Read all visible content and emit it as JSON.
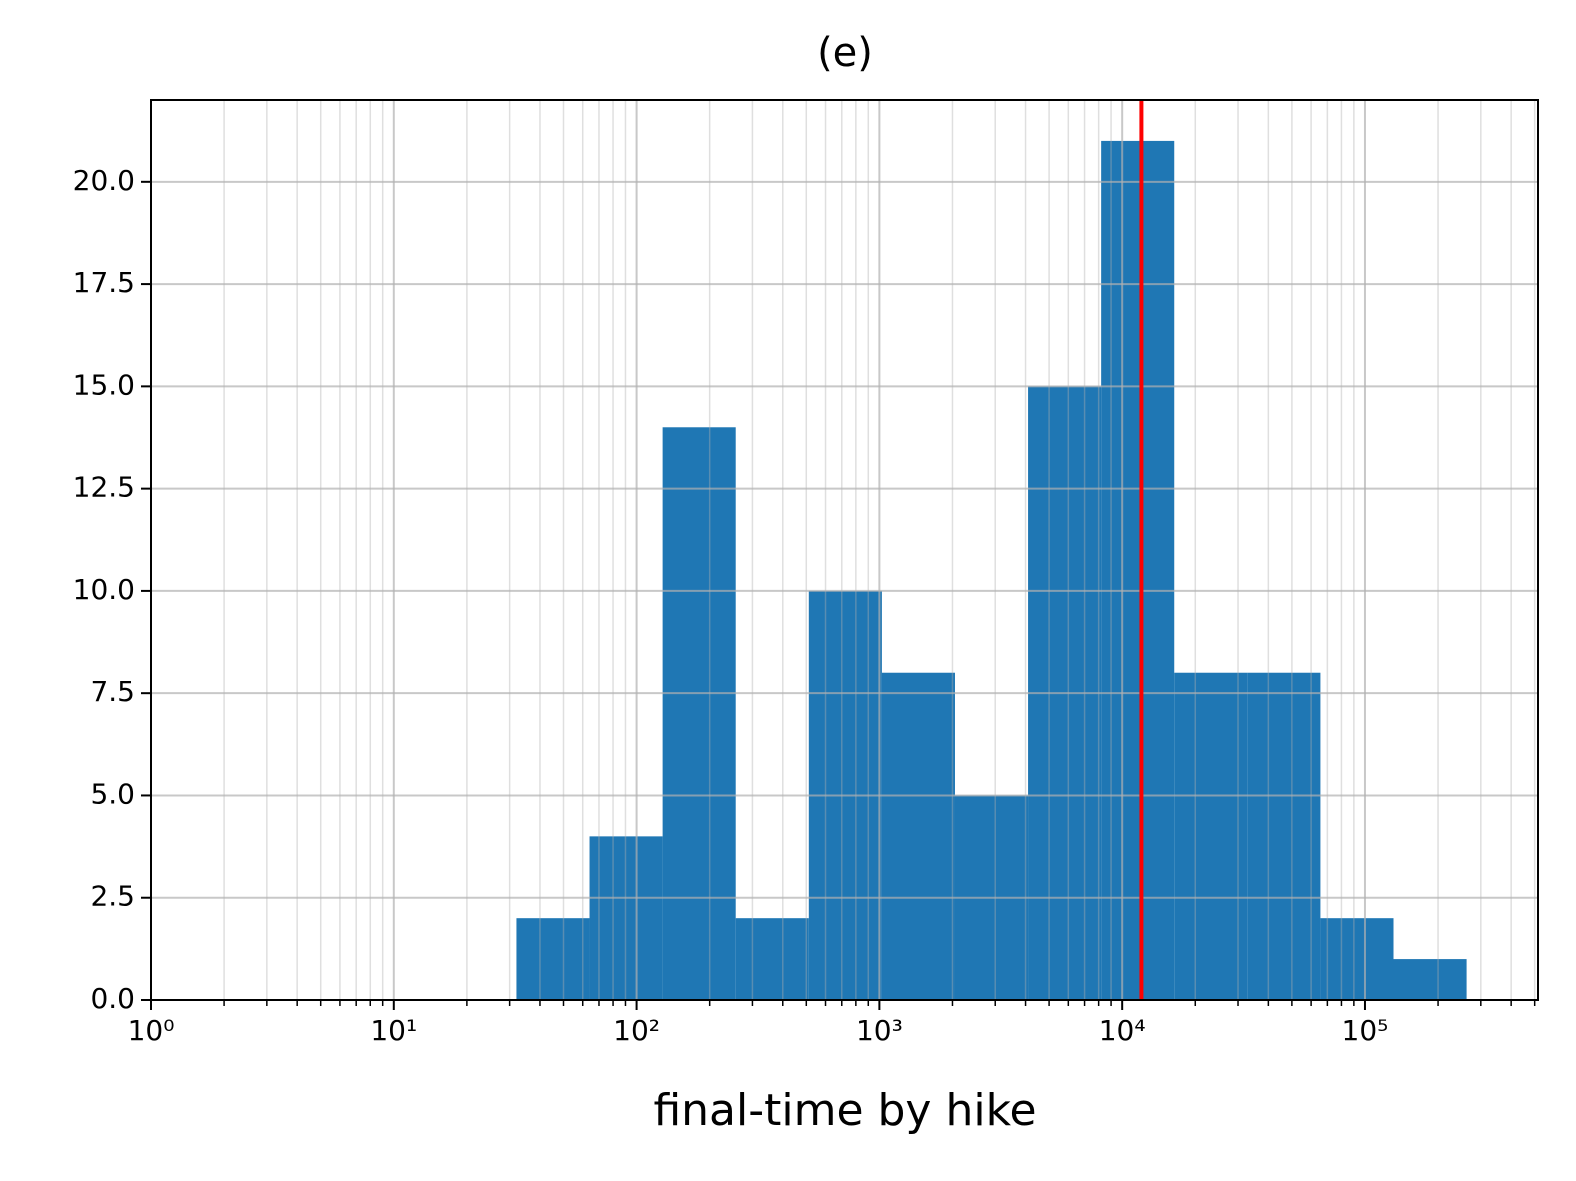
{
  "chart_data": {
    "type": "histogram",
    "title": "(e)",
    "x_label": "final-time by hike",
    "bins": [
      32,
      64,
      128,
      256,
      512,
      1024,
      2048,
      4096,
      8192,
      16384,
      32768,
      65536,
      131072,
      262144
    ],
    "values": [
      2,
      4,
      14,
      2,
      10,
      8,
      5,
      15,
      21,
      8,
      8,
      2,
      1
    ],
    "color": "#1f77b4",
    "x_scale": "log",
    "xlim": [
      1,
      516000
    ],
    "xticks": [
      {
        "value": 1,
        "label": "10⁰"
      },
      {
        "value": 10,
        "label": "10¹"
      },
      {
        "value": 100,
        "label": "10²"
      },
      {
        "value": 1000,
        "label": "10³"
      },
      {
        "value": 10000,
        "label": "10⁴"
      },
      {
        "value": 100000,
        "label": "10⁵"
      }
    ],
    "ylim": [
      0,
      22
    ],
    "yticks": [
      {
        "value": 0,
        "label": "0.0"
      },
      {
        "value": 2.5,
        "label": "2.5"
      },
      {
        "value": 5,
        "label": "5.0"
      },
      {
        "value": 7.5,
        "label": "7.5"
      },
      {
        "value": 10,
        "label": "10.0"
      },
      {
        "value": 12.5,
        "label": "12.5"
      },
      {
        "value": 15,
        "label": "15.0"
      },
      {
        "value": 17.5,
        "label": "17.5"
      },
      {
        "value": 20,
        "label": "20.0"
      }
    ],
    "grid": true,
    "minor_grid": true,
    "vline": {
      "value": 12000,
      "color": "#ff0000"
    }
  }
}
